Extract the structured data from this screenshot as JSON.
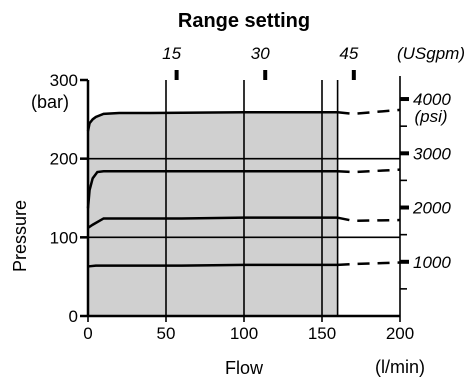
{
  "chart_data": {
    "type": "line",
    "title": "Range setting",
    "xlabel": "Flow",
    "xunit": "(l/min)",
    "ylabel": "Pressure",
    "yunit": "(bar)",
    "xlim": [
      0,
      200
    ],
    "ylim": [
      0,
      300
    ],
    "x_ticks": [
      0,
      50,
      100,
      150,
      200
    ],
    "y_ticks": [
      0,
      100,
      200,
      300
    ],
    "grid_x": [
      50,
      100,
      150,
      160
    ],
    "grid_y": [
      100,
      200
    ],
    "top_axis": {
      "unit": "(USgpm)",
      "ticks": [
        {
          "label": "15",
          "x": 56.8
        },
        {
          "label": "30",
          "x": 113.6
        },
        {
          "label": "45",
          "x": 170.4
        }
      ]
    },
    "right_axis": {
      "unit": "(psi)",
      "ticks": [
        {
          "label": "4000",
          "y": 275.8
        },
        {
          "label": "3000",
          "y": 206.8
        },
        {
          "label": "2000",
          "y": 137.9
        },
        {
          "label": "1000",
          "y": 68.9
        }
      ]
    },
    "shaded_region": {
      "x_max": 160,
      "y_max": 262
    },
    "series": [
      {
        "x": [
          0,
          1,
          3,
          5,
          10,
          20,
          40,
          100,
          160
        ],
        "y": [
          235,
          245,
          250,
          253,
          257,
          258,
          258,
          259,
          259
        ],
        "dashed_to": [
          [
            170,
            257
          ],
          [
            200,
            262
          ]
        ]
      },
      {
        "x": [
          0,
          1,
          3,
          6,
          10,
          20,
          60,
          100,
          160
        ],
        "y": [
          137,
          160,
          175,
          183,
          184,
          184,
          184,
          184,
          184
        ],
        "dashed_to": [
          [
            170,
            183
          ],
          [
            200,
            186
          ]
        ]
      },
      {
        "x": [
          0,
          3,
          10,
          20,
          60,
          100,
          160
        ],
        "y": [
          112,
          116,
          124,
          124,
          124,
          125,
          125
        ],
        "dashed_to": [
          [
            170,
            121
          ],
          [
            200,
            122
          ]
        ]
      },
      {
        "x": [
          0,
          5,
          20,
          60,
          100,
          160
        ],
        "y": [
          63,
          64,
          64,
          64,
          65,
          65
        ],
        "dashed_to": [
          [
            170,
            66
          ],
          [
            200,
            68
          ]
        ]
      }
    ]
  }
}
